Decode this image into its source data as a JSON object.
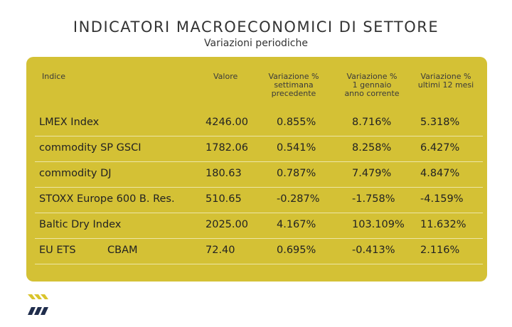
{
  "title": "INDICATORI MACROECONOMICI DI SETTORE",
  "subtitle": "Variazioni periodiche",
  "table": {
    "headers": {
      "indice": "Indice",
      "valore": "Valore",
      "var_sett": [
        "Variazione %",
        "settimana",
        "precedente"
      ],
      "var_gen": [
        "Variazione %",
        "1 gennaio",
        "anno corrente"
      ],
      "var_12": [
        "Variazione %",
        "ultimi 12 mesi"
      ]
    },
    "rows": [
      {
        "indice": "LMEX Index",
        "indice2": "",
        "valore": "4246.00",
        "var_sett": "0.855%",
        "var_gen": "8.716%",
        "var_12": "5.318%"
      },
      {
        "indice": "commodity SP GSCI",
        "indice2": "",
        "valore": "1782.06",
        "var_sett": "0.541%",
        "var_gen": "8.258%",
        "var_12": "6.427%"
      },
      {
        "indice": "commodity DJ",
        "indice2": "",
        "valore": "180.63",
        "var_sett": "0.787%",
        "var_gen": "7.479%",
        "var_12": "4.847%"
      },
      {
        "indice": "STOXX Europe 600 B. Res.",
        "indice2": "",
        "valore": "510.65",
        "var_sett": "-0.287%",
        "var_gen": "-1.758%",
        "var_12": "-4.159%"
      },
      {
        "indice": "Baltic Dry Index",
        "indice2": "",
        "valore": "2025.00",
        "var_sett": "4.167%",
        "var_gen": "103.109%",
        "var_12": "11.632%"
      },
      {
        "indice": "EU ETS",
        "indice2": "CBAM",
        "valore": "72.40",
        "var_sett": "0.695%",
        "var_gen": "-0.413%",
        "var_12": "2.116%"
      }
    ]
  },
  "colors": {
    "card": "#d4c135",
    "logo_yellow": "#d9c42c",
    "logo_navy": "#1f2d4c"
  },
  "logo_icon": "chevron-stripes-logo"
}
